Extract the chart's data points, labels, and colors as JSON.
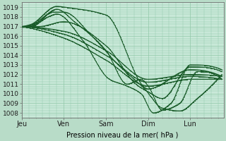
{
  "title": "",
  "xlabel": "Pression niveau de la mer( hPa )",
  "ylabel": "",
  "fig_bg_color": "#b8dcc8",
  "plot_bg_color": "#c8e8d8",
  "grid_color": "#90c8a8",
  "line_color": "#1a5c2a",
  "ylim": [
    1007.5,
    1019.5
  ],
  "yticks": [
    1008,
    1009,
    1010,
    1011,
    1012,
    1013,
    1014,
    1015,
    1016,
    1017,
    1018,
    1019
  ],
  "xtick_labels": [
    "Jeu",
    "Ven",
    "Sam",
    "Dim",
    "Lun"
  ],
  "xtick_positions": [
    0,
    24,
    48,
    72,
    96
  ],
  "xlim": [
    0,
    115
  ],
  "line_width": 1.0,
  "lines": [
    {
      "x": [
        0,
        5,
        20,
        25,
        48,
        72,
        96,
        114
      ],
      "y": [
        1017.0,
        1017.2,
        1019.1,
        1019.0,
        1018.2,
        1010.5,
        1012.5,
        1011.8
      ]
    },
    {
      "x": [
        0,
        5,
        18,
        24,
        40,
        55,
        70,
        80,
        90,
        100,
        114
      ],
      "y": [
        1017.0,
        1017.1,
        1018.5,
        1018.5,
        1016.0,
        1013.0,
        1010.5,
        1008.5,
        1008.2,
        1009.5,
        1012.0
      ]
    },
    {
      "x": [
        0,
        5,
        15,
        20,
        35,
        50,
        60,
        68,
        75,
        85,
        96,
        114
      ],
      "y": [
        1017.0,
        1017.0,
        1018.0,
        1018.3,
        1015.5,
        1011.5,
        1010.8,
        1010.0,
        1008.0,
        1009.0,
        1013.0,
        1012.5
      ]
    },
    {
      "x": [
        0,
        10,
        24,
        48,
        65,
        72,
        80,
        96,
        114
      ],
      "y": [
        1017.0,
        1017.0,
        1017.5,
        1015.0,
        1011.0,
        1010.2,
        1009.5,
        1012.8,
        1012.3
      ]
    },
    {
      "x": [
        0,
        24,
        48,
        72,
        96,
        114
      ],
      "y": [
        1017.0,
        1016.5,
        1014.5,
        1011.5,
        1012.0,
        1011.8
      ]
    },
    {
      "x": [
        0,
        24,
        48,
        72,
        96,
        114
      ],
      "y": [
        1017.0,
        1016.2,
        1014.0,
        1011.2,
        1011.8,
        1011.5
      ]
    },
    {
      "x": [
        0,
        24,
        48,
        72,
        96,
        114
      ],
      "y": [
        1017.0,
        1015.8,
        1013.5,
        1010.8,
        1011.5,
        1011.5
      ]
    },
    {
      "x": [
        0,
        5,
        20,
        30,
        48,
        60,
        68,
        72,
        80,
        90,
        100,
        114
      ],
      "y": [
        1017.0,
        1017.0,
        1018.8,
        1017.5,
        1014.5,
        1011.0,
        1011.5,
        1010.8,
        1008.3,
        1009.0,
        1012.3,
        1011.5
      ]
    }
  ]
}
